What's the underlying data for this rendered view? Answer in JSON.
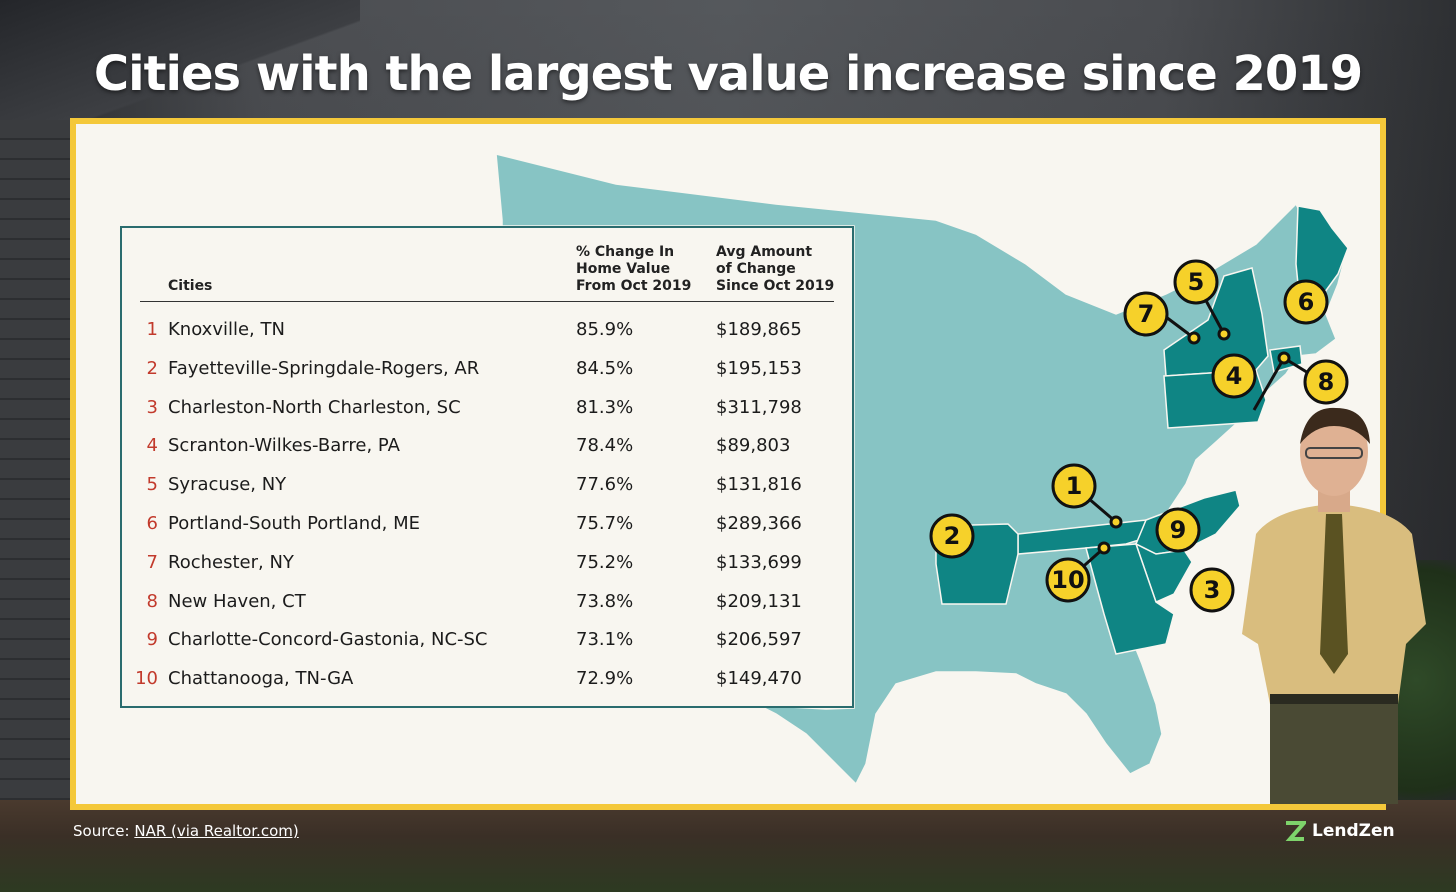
{
  "headline": "Cities with the largest value increase since 2019",
  "table": {
    "headers": {
      "cities": "Cities",
      "pct_line1": "% Change In",
      "pct_line2": "Home Value",
      "pct_line3": "From Oct 2019",
      "amt_line1": "Avg Amount",
      "amt_line2": "of Change",
      "amt_line3": "Since Oct 2019"
    },
    "rows": [
      {
        "rank": "1",
        "city": "Knoxville, TN",
        "pct": "85.9%",
        "amount": "$189,865"
      },
      {
        "rank": "2",
        "city": "Fayetteville-Springdale-Rogers, AR",
        "pct": "84.5%",
        "amount": "$195,153"
      },
      {
        "rank": "3",
        "city": "Charleston-North Charleston, SC",
        "pct": "81.3%",
        "amount": "$311,798"
      },
      {
        "rank": "4",
        "city": "Scranton-Wilkes-Barre, PA",
        "pct": "78.4%",
        "amount": "$89,803"
      },
      {
        "rank": "5",
        "city": "Syracuse, NY",
        "pct": "77.6%",
        "amount": "$131,816"
      },
      {
        "rank": "6",
        "city": "Portland-South Portland, ME",
        "pct": "75.7%",
        "amount": "$289,366"
      },
      {
        "rank": "7",
        "city": "Rochester, NY",
        "pct": "75.2%",
        "amount": "$133,699"
      },
      {
        "rank": "8",
        "city": "New Haven, CT",
        "pct": "73.8%",
        "amount": "$209,131"
      },
      {
        "rank": "9",
        "city": "Charlotte-Concord-Gastonia, NC-SC",
        "pct": "73.1%",
        "amount": "$206,597"
      },
      {
        "rank": "10",
        "city": "Chattanooga, TN-GA",
        "pct": "72.9%",
        "amount": "$149,470"
      }
    ]
  },
  "map_markers": [
    "1",
    "2",
    "3",
    "4",
    "5",
    "6",
    "7",
    "8",
    "9",
    "10"
  ],
  "footer": {
    "source_prefix": "Source: ",
    "source_link": "NAR (via Realtor.com)",
    "brand": "LendZen"
  },
  "colors": {
    "map_light": "#87c4c4",
    "map_dark": "#0f8584",
    "marker": "#f6d12a",
    "frame": "#f4c83a",
    "rank": "#c23a2c"
  }
}
